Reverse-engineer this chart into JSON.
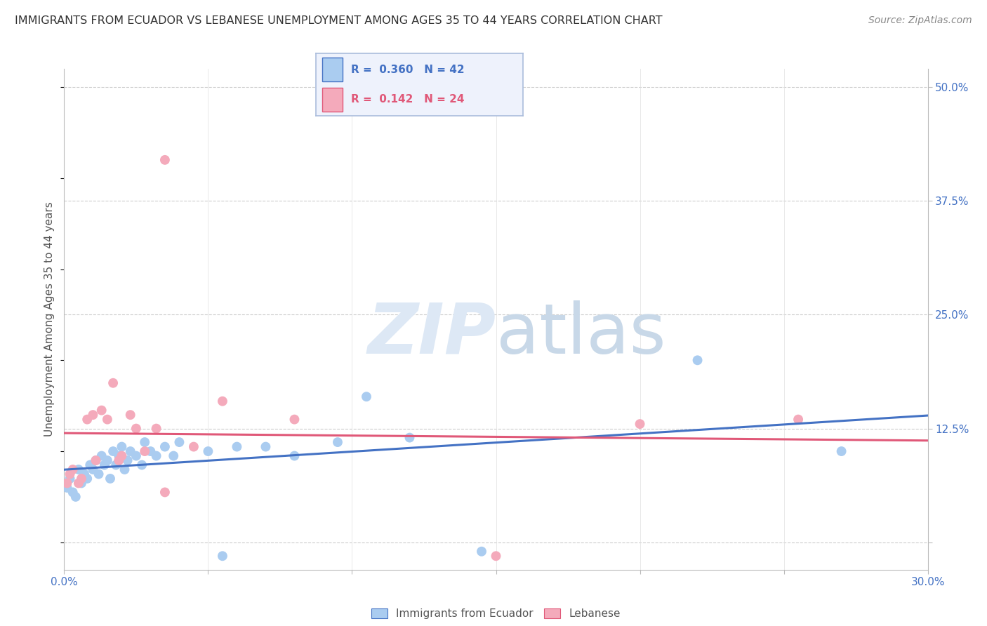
{
  "title": "IMMIGRANTS FROM ECUADOR VS LEBANESE UNEMPLOYMENT AMONG AGES 35 TO 44 YEARS CORRELATION CHART",
  "source": "Source: ZipAtlas.com",
  "ylabel": "Unemployment Among Ages 35 to 44 years",
  "xlim": [
    0.0,
    30.0
  ],
  "ylim": [
    -3.0,
    52.0
  ],
  "yticks": [
    0.0,
    12.5,
    25.0,
    37.5,
    50.0
  ],
  "ytick_labels": [
    "",
    "12.5%",
    "25.0%",
    "37.5%",
    "50.0%"
  ],
  "xtick_positions": [
    0.0,
    5.0,
    10.0,
    15.0,
    20.0,
    25.0,
    30.0
  ],
  "grid_color": "#cccccc",
  "background_color": "#ffffff",
  "ecuador_color": "#aaccf0",
  "ecuador_line_color": "#4472c4",
  "lebanese_color": "#f4aabb",
  "lebanese_line_color": "#e05878",
  "ecuador_R": 0.36,
  "ecuador_N": 42,
  "lebanese_R": 0.142,
  "lebanese_N": 24,
  "ecuador_x": [
    0.1,
    0.2,
    0.3,
    0.4,
    0.5,
    0.6,
    0.7,
    0.8,
    0.9,
    1.0,
    1.1,
    1.2,
    1.3,
    1.4,
    1.5,
    1.6,
    1.7,
    1.8,
    1.9,
    2.0,
    2.1,
    2.2,
    2.3,
    2.5,
    2.7,
    2.8,
    3.0,
    3.2,
    3.5,
    3.8,
    4.0,
    5.0,
    5.5,
    6.0,
    7.0,
    8.0,
    9.5,
    10.5,
    12.0,
    14.5,
    22.0,
    27.0
  ],
  "ecuador_y": [
    6.0,
    7.0,
    5.5,
    5.0,
    8.0,
    6.5,
    7.5,
    7.0,
    8.5,
    8.0,
    9.0,
    7.5,
    9.5,
    8.5,
    9.0,
    7.0,
    10.0,
    8.5,
    9.5,
    10.5,
    8.0,
    9.0,
    10.0,
    9.5,
    8.5,
    11.0,
    10.0,
    9.5,
    10.5,
    9.5,
    11.0,
    10.0,
    -1.5,
    10.5,
    10.5,
    9.5,
    11.0,
    16.0,
    11.5,
    -1.0,
    20.0,
    10.0
  ],
  "lebanese_x": [
    0.1,
    0.2,
    0.3,
    0.5,
    0.6,
    0.8,
    1.0,
    1.1,
    1.3,
    1.5,
    1.7,
    1.9,
    2.0,
    2.3,
    2.5,
    2.8,
    3.2,
    3.5,
    4.5,
    5.5,
    8.0,
    15.0,
    20.0,
    25.5
  ],
  "lebanese_y": [
    6.5,
    7.5,
    8.0,
    6.5,
    7.0,
    13.5,
    14.0,
    9.0,
    14.5,
    13.5,
    17.5,
    9.0,
    9.5,
    14.0,
    12.5,
    10.0,
    12.5,
    5.5,
    10.5,
    15.5,
    13.5,
    -1.5,
    13.0,
    13.5
  ],
  "lebanese_outlier_x": [
    3.5
  ],
  "lebanese_outlier_y": [
    42.0
  ],
  "legend_box_facecolor": "#eef2fc",
  "legend_box_edgecolor": "#aabcdc",
  "watermark_color": "#dde8f5",
  "title_fontsize": 11.5,
  "legend_fontsize": 11,
  "tick_fontsize": 11,
  "ylabel_fontsize": 11,
  "source_fontsize": 10,
  "marker_size": 100
}
